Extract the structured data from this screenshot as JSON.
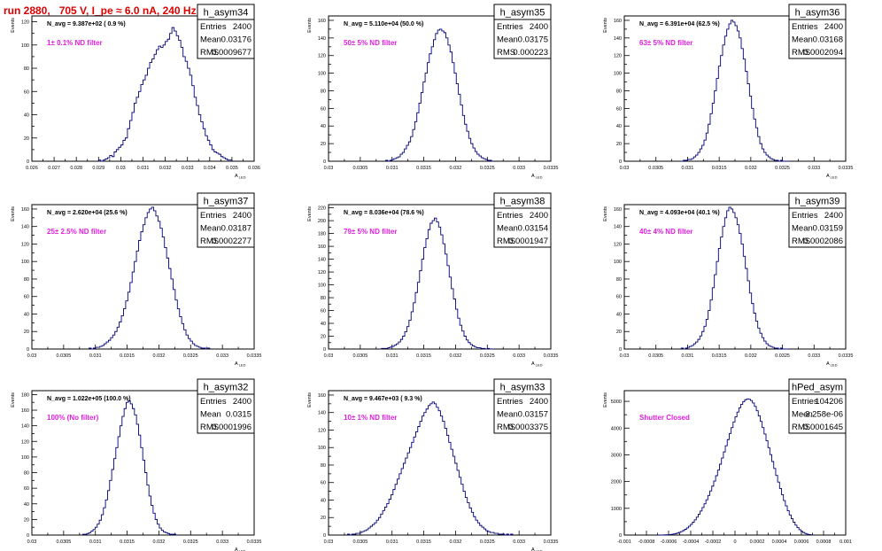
{
  "page_title": "run 2880,   705 V, I_pe ≈ 6.0 nA, 240 Hz",
  "colors": {
    "histogram_line": "#00007a",
    "annotation": "#e020e0",
    "title": "#e00000",
    "frame": "#000000"
  },
  "stats_labels": {
    "entries": "Entries",
    "mean": "Mean",
    "rms": "RMS"
  },
  "chart_data": [
    {
      "type": "histogram",
      "name": "h_asym34",
      "header": "N_avg = 9.387e+02 ( 0.9 %)",
      "annotation": "1± 0.1% ND filter",
      "stats": {
        "entries": "2400",
        "mean": "0.03176",
        "rms": "0.0009677"
      },
      "xlabel": "A_LED",
      "ylabel": "Events",
      "xlim": [
        0.026,
        0.036
      ],
      "ylim": [
        0,
        125
      ],
      "xticks": [
        "0.026",
        "0.027",
        "0.028",
        "0.029",
        "0.03",
        "0.031",
        "0.032",
        "0.033",
        "0.034",
        "0.035",
        "0.036"
      ],
      "yticks": [
        "0",
        "20",
        "40",
        "60",
        "80",
        "100",
        "120"
      ],
      "bins": {
        "lo": 0.029,
        "hi": 0.035,
        "n": 60,
        "counts": [
          1,
          0,
          1,
          2,
          3,
          5,
          4,
          8,
          10,
          12,
          14,
          18,
          20,
          28,
          35,
          42,
          50,
          55,
          60,
          66,
          70,
          74,
          80,
          85,
          88,
          92,
          96,
          99,
          98,
          100,
          103,
          105,
          110,
          115,
          112,
          108,
          104,
          98,
          90,
          86,
          80,
          74,
          65,
          55,
          48,
          40,
          34,
          28,
          22,
          18,
          14,
          10,
          8,
          7,
          6,
          4,
          3,
          2,
          1,
          1
        ]
      }
    },
    {
      "type": "histogram",
      "name": "h_asym35",
      "header": "N_avg = 5.110e+04 (50.0 %)",
      "annotation": "50± 5% ND filter",
      "stats": {
        "entries": "2400",
        "mean": "0.03175",
        "rms": "0.000223"
      },
      "xlabel": "A_LED",
      "ylabel": "Events",
      "xlim": [
        0.03,
        0.0335
      ],
      "ylim": [
        0,
        165
      ],
      "xticks": [
        "0.03",
        "0.0305",
        "0.031",
        "0.0315",
        "0.032",
        "0.0325",
        "0.033",
        "0.0335"
      ],
      "yticks": [
        "0",
        "20",
        "40",
        "60",
        "80",
        "100",
        "120",
        "140",
        "160"
      ],
      "bins": {
        "lo": 0.0309,
        "hi": 0.0326,
        "n": 52,
        "counts": [
          1,
          0,
          1,
          2,
          3,
          4,
          5,
          8,
          10,
          14,
          18,
          22,
          28,
          36,
          45,
          55,
          66,
          78,
          90,
          100,
          112,
          122,
          130,
          138,
          145,
          149,
          150,
          148,
          146,
          140,
          132,
          124,
          112,
          100,
          88,
          76,
          64,
          52,
          42,
          34,
          26,
          20,
          15,
          11,
          8,
          6,
          4,
          3,
          2,
          1,
          1,
          0
        ]
      }
    },
    {
      "type": "histogram",
      "name": "h_asym36",
      "header": "N_avg = 6.391e+04 (62.5 %)",
      "annotation": "63± 5% ND filter",
      "stats": {
        "entries": "2400",
        "mean": "0.03168",
        "rms": "0.0002094"
      },
      "xlabel": "A_LED",
      "ylabel": "Events",
      "xlim": [
        0.03,
        0.0335
      ],
      "ylim": [
        0,
        165
      ],
      "xticks": [
        "0.03",
        "0.0305",
        "0.031",
        "0.0315",
        "0.032",
        "0.0325",
        "0.033",
        "0.0335"
      ],
      "yticks": [
        "0",
        "20",
        "40",
        "60",
        "80",
        "100",
        "120",
        "140",
        "160"
      ],
      "bins": {
        "lo": 0.0309,
        "hi": 0.0326,
        "n": 52,
        "counts": [
          0,
          1,
          1,
          2,
          2,
          3,
          5,
          7,
          10,
          14,
          18,
          24,
          32,
          42,
          54,
          66,
          80,
          94,
          108,
          120,
          132,
          142,
          150,
          156,
          160,
          158,
          154,
          148,
          140,
          128,
          116,
          102,
          88,
          74,
          60,
          48,
          38,
          28,
          20,
          14,
          10,
          7,
          5,
          3,
          2,
          1,
          1,
          0,
          1,
          0,
          0,
          0
        ]
      }
    },
    {
      "type": "histogram",
      "name": "h_asym37",
      "header": "N_avg = 2.620e+04 (25.6 %)",
      "annotation": "25± 2.5% ND filter",
      "stats": {
        "entries": "2400",
        "mean": "0.03187",
        "rms": "0.0002277"
      },
      "xlabel": "A_LED",
      "ylabel": "Events",
      "xlim": [
        0.03,
        0.0335
      ],
      "ylim": [
        0,
        165
      ],
      "xticks": [
        "0.03",
        "0.0305",
        "0.031",
        "0.0315",
        "0.032",
        "0.0325",
        "0.033",
        "0.0335"
      ],
      "yticks": [
        "0",
        "20",
        "40",
        "60",
        "80",
        "100",
        "120",
        "140",
        "160"
      ],
      "bins": {
        "lo": 0.0309,
        "hi": 0.0328,
        "n": 56,
        "counts": [
          1,
          0,
          1,
          2,
          2,
          3,
          4,
          6,
          8,
          10,
          13,
          16,
          20,
          25,
          31,
          38,
          46,
          55,
          65,
          76,
          88,
          100,
          112,
          124,
          134,
          142,
          150,
          156,
          160,
          162,
          158,
          152,
          146,
          138,
          128,
          116,
          104,
          92,
          80,
          68,
          56,
          46,
          37,
          29,
          22,
          16,
          12,
          9,
          6,
          4,
          3,
          2,
          1,
          1,
          0,
          1
        ]
      }
    },
    {
      "type": "histogram",
      "name": "h_asym38",
      "header": "N_avg = 8.036e+04 (78.6 %)",
      "annotation": "79± 5% ND filter",
      "stats": {
        "entries": "2400",
        "mean": "0.03154",
        "rms": "0.0001947"
      },
      "xlabel": "A_LED",
      "ylabel": "Events",
      "xlim": [
        0.03,
        0.0335
      ],
      "ylim": [
        0,
        225
      ],
      "xticks": [
        "0.03",
        "0.0305",
        "0.031",
        "0.0315",
        "0.032",
        "0.0325",
        "0.033",
        "0.0335"
      ],
      "yticks": [
        "0",
        "20",
        "40",
        "60",
        "80",
        "100",
        "120",
        "140",
        "160",
        "180",
        "200",
        "220"
      ],
      "bins": {
        "lo": 0.0308,
        "hi": 0.0326,
        "n": 54,
        "counts": [
          0,
          1,
          1,
          1,
          2,
          3,
          4,
          6,
          8,
          11,
          15,
          20,
          27,
          35,
          45,
          58,
          72,
          88,
          104,
          122,
          140,
          158,
          172,
          186,
          196,
          200,
          204,
          198,
          190,
          178,
          164,
          148,
          130,
          112,
          94,
          78,
          62,
          48,
          37,
          28,
          20,
          14,
          10,
          7,
          5,
          3,
          2,
          2,
          1,
          1,
          0,
          1,
          0,
          0
        ]
      }
    },
    {
      "type": "histogram",
      "name": "h_asym39",
      "header": "N_avg = 4.093e+04 (40.1 %)",
      "annotation": "40± 4% ND filter",
      "stats": {
        "entries": "2400",
        "mean": "0.03159",
        "rms": "0.0002086"
      },
      "xlabel": "A_LED",
      "ylabel": "Events",
      "xlim": [
        0.03,
        0.0335
      ],
      "ylim": [
        0,
        165
      ],
      "xticks": [
        "0.03",
        "0.0305",
        "0.031",
        "0.0315",
        "0.032",
        "0.0325",
        "0.033",
        "0.0335"
      ],
      "yticks": [
        "0",
        "20",
        "40",
        "60",
        "80",
        "100",
        "120",
        "140",
        "160"
      ],
      "bins": {
        "lo": 0.0309,
        "hi": 0.0326,
        "n": 52,
        "counts": [
          1,
          0,
          1,
          2,
          3,
          4,
          6,
          8,
          11,
          15,
          20,
          26,
          34,
          44,
          56,
          70,
          85,
          100,
          115,
          128,
          140,
          150,
          158,
          162,
          160,
          156,
          150,
          142,
          132,
          120,
          106,
          92,
          78,
          64,
          52,
          41,
          32,
          24,
          18,
          13,
          9,
          6,
          4,
          3,
          2,
          1,
          1,
          0,
          1,
          0,
          0,
          0
        ]
      }
    },
    {
      "type": "histogram",
      "name": "h_asym32",
      "header": "N_avg = 1.022e+05 (100.0 %)",
      "annotation": "100% (No filter)",
      "stats": {
        "entries": "2400",
        "mean": "0.0315",
        "rms": "0.0001996"
      },
      "xlabel": "A_LED",
      "ylabel": "Events",
      "xlim": [
        0.03,
        0.0335
      ],
      "ylim": [
        0,
        185
      ],
      "xticks": [
        "0.03",
        "0.0305",
        "0.031",
        "0.0315",
        "0.032",
        "0.0325",
        "0.033",
        "0.0335"
      ],
      "yticks": [
        "0",
        "20",
        "40",
        "60",
        "80",
        "100",
        "120",
        "140",
        "160",
        "180"
      ],
      "bins": {
        "lo": 0.0308,
        "hi": 0.0323,
        "n": 46,
        "counts": [
          1,
          1,
          2,
          3,
          5,
          7,
          10,
          14,
          19,
          26,
          35,
          45,
          57,
          70,
          84,
          98,
          112,
          126,
          140,
          152,
          162,
          170,
          172,
          168,
          162,
          154,
          142,
          128,
          112,
          96,
          80,
          64,
          50,
          38,
          28,
          20,
          14,
          9,
          6,
          4,
          3,
          2,
          1,
          1,
          1,
          0
        ]
      }
    },
    {
      "type": "histogram",
      "name": "h_asym33",
      "header": "N_avg = 9.467e+03 ( 9.3 %)",
      "annotation": "10± 1% ND filter",
      "stats": {
        "entries": "2400",
        "mean": "0.03157",
        "rms": "0.0003375"
      },
      "xlabel": "A_LED",
      "ylabel": "Events",
      "xlim": [
        0.03,
        0.0335
      ],
      "ylim": [
        0,
        165
      ],
      "xticks": [
        "0.03",
        "0.0305",
        "0.031",
        "0.0315",
        "0.032",
        "0.0325",
        "0.033",
        "0.0335"
      ],
      "yticks": [
        "0",
        "20",
        "40",
        "60",
        "80",
        "100",
        "120",
        "140",
        "160"
      ],
      "bins": {
        "lo": 0.0303,
        "hi": 0.0329,
        "n": 80,
        "counts": [
          1,
          0,
          1,
          1,
          2,
          2,
          3,
          4,
          5,
          6,
          8,
          10,
          12,
          14,
          17,
          20,
          24,
          28,
          32,
          36,
          41,
          46,
          52,
          58,
          64,
          70,
          76,
          82,
          88,
          94,
          100,
          106,
          112,
          118,
          124,
          130,
          136,
          140,
          144,
          148,
          150,
          152,
          150,
          146,
          142,
          136,
          130,
          122,
          114,
          106,
          98,
          90,
          82,
          74,
          66,
          58,
          50,
          43,
          37,
          31,
          26,
          21,
          17,
          14,
          11,
          9,
          7,
          5,
          4,
          3,
          3,
          2,
          2,
          1,
          1,
          1,
          0,
          1,
          0,
          1
        ]
      }
    },
    {
      "type": "histogram",
      "name": "hPed_asym",
      "header": "",
      "annotation": "Shutter Closed",
      "stats": {
        "entries": "104206",
        "mean": "-3.258e-06",
        "rms": "0.0001645"
      },
      "xlabel": "",
      "ylabel": "Events",
      "xlim": [
        -0.001,
        0.001
      ],
      "ylim": [
        0,
        5400
      ],
      "xticks": [
        "-0.001",
        "-0.0008",
        "-0.0006",
        "-0.0004",
        "-0.0002",
        "0",
        "0.0002",
        "0.0004",
        "0.0006",
        "0.0008",
        "0.001"
      ],
      "yticks": [
        "0",
        "1000",
        "2000",
        "3000",
        "4000",
        "5000"
      ],
      "bins": {
        "lo": -0.0007,
        "hi": 0.0007,
        "n": 80,
        "counts": [
          1,
          2,
          3,
          5,
          8,
          12,
          18,
          26,
          38,
          54,
          75,
          100,
          132,
          170,
          215,
          268,
          330,
          400,
          480,
          570,
          670,
          780,
          900,
          1030,
          1170,
          1320,
          1480,
          1650,
          1830,
          2020,
          2220,
          2430,
          2650,
          2880,
          3110,
          3340,
          3570,
          3800,
          4020,
          4230,
          4420,
          4600,
          4760,
          4890,
          4990,
          5060,
          5090,
          5080,
          5030,
          4940,
          4810,
          4650,
          4460,
          4250,
          4020,
          3780,
          3530,
          3270,
          3010,
          2750,
          2490,
          2230,
          1980,
          1740,
          1510,
          1290,
          1090,
          910,
          750,
          610,
          480,
          370,
          280,
          200,
          140,
          95,
          60,
          35,
          20,
          10
        ]
      }
    }
  ]
}
